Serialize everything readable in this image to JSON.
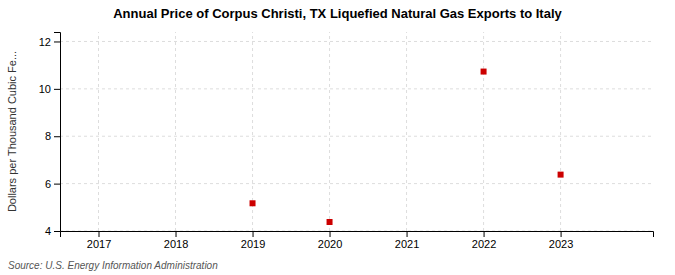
{
  "chart_data": {
    "type": "scatter",
    "title": "Annual Price of Corpus Christi, TX  Liquefied Natural Gas Exports to Italy",
    "y_label": "Dollars per Thousand Cubic Fe...",
    "source": "Source: U.S. Energy Information Administration",
    "x": [
      2019,
      2020,
      2022,
      2023
    ],
    "values": [
      5.17,
      4.38,
      10.73,
      6.38
    ],
    "color": "#cc0000",
    "marker": "square",
    "xlim": [
      2016.5,
      2024.2
    ],
    "ylim": [
      4,
      12.4
    ],
    "xticks": [
      2017,
      2018,
      2019,
      2020,
      2021,
      2022,
      2023
    ],
    "yticks": [
      4,
      6,
      8,
      10,
      12
    ],
    "grid": true
  }
}
